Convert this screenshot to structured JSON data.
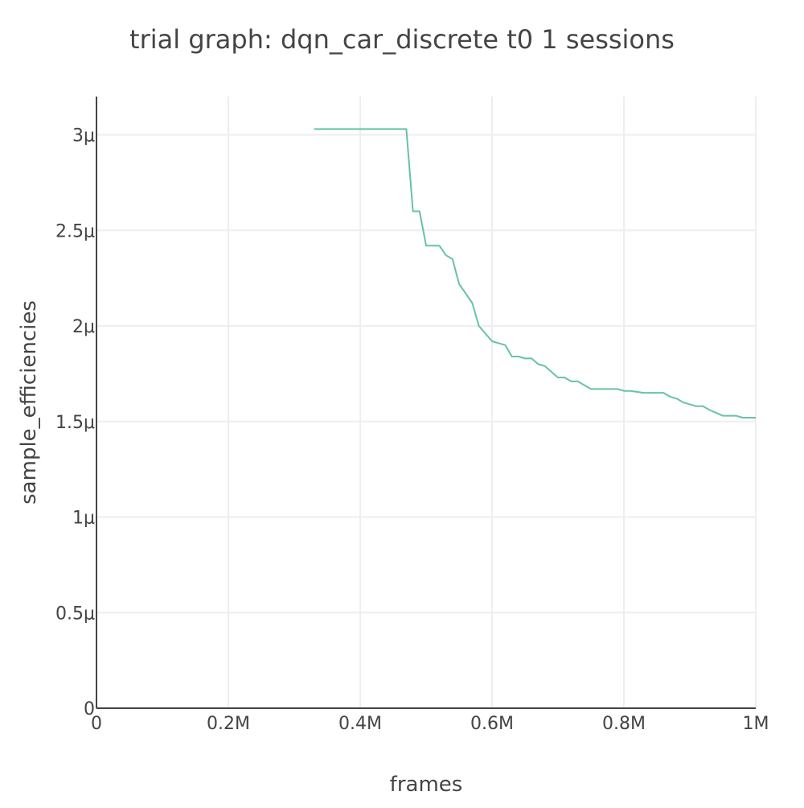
{
  "chart_data": {
    "type": "line",
    "title": "trial graph: dqn_car_discrete t0 1 sessions",
    "xlabel": "frames",
    "ylabel": "sample_efficiencies",
    "xlim": [
      0,
      1000000
    ],
    "ylim": [
      0,
      3.2e-06
    ],
    "grid": true,
    "x_ticks": [
      {
        "value": 0,
        "label": "0"
      },
      {
        "value": 200000,
        "label": "0.2M"
      },
      {
        "value": 400000,
        "label": "0.4M"
      },
      {
        "value": 600000,
        "label": "0.6M"
      },
      {
        "value": 800000,
        "label": "0.8M"
      },
      {
        "value": 1000000,
        "label": "1M"
      }
    ],
    "y_ticks": [
      {
        "value": 0,
        "label": "0"
      },
      {
        "value": 5e-07,
        "label": "0.5μ"
      },
      {
        "value": 1e-06,
        "label": "1μ"
      },
      {
        "value": 1.5e-06,
        "label": "1.5μ"
      },
      {
        "value": 2e-06,
        "label": "2μ"
      },
      {
        "value": 2.5e-06,
        "label": "2.5μ"
      },
      {
        "value": 3e-06,
        "label": "3μ"
      }
    ],
    "series": [
      {
        "color": "#66c2a5",
        "x": [
          330000,
          470000,
          480000,
          490000,
          500000,
          520000,
          530000,
          540000,
          550000,
          560000,
          570000,
          580000,
          590000,
          600000,
          610000,
          620000,
          630000,
          640000,
          650000,
          660000,
          670000,
          680000,
          690000,
          700000,
          710000,
          720000,
          730000,
          740000,
          750000,
          760000,
          790000,
          800000,
          810000,
          830000,
          860000,
          870000,
          880000,
          890000,
          900000,
          910000,
          920000,
          930000,
          950000,
          960000,
          970000,
          980000,
          990000,
          1000000
        ],
        "y": [
          3.03e-06,
          3.03e-06,
          2.6e-06,
          2.6e-06,
          2.42e-06,
          2.42e-06,
          2.37e-06,
          2.35e-06,
          2.22e-06,
          2.17e-06,
          2.12e-06,
          2e-06,
          1.96e-06,
          1.92e-06,
          1.91e-06,
          1.9e-06,
          1.84e-06,
          1.84e-06,
          1.83e-06,
          1.83e-06,
          1.8e-06,
          1.79e-06,
          1.76e-06,
          1.73e-06,
          1.73e-06,
          1.71e-06,
          1.71e-06,
          1.69e-06,
          1.67e-06,
          1.67e-06,
          1.67e-06,
          1.66e-06,
          1.66e-06,
          1.65e-06,
          1.65e-06,
          1.63e-06,
          1.62e-06,
          1.6e-06,
          1.59e-06,
          1.58e-06,
          1.58e-06,
          1.56e-06,
          1.53e-06,
          1.53e-06,
          1.53e-06,
          1.52e-06,
          1.52e-06,
          1.52e-06
        ]
      }
    ]
  }
}
